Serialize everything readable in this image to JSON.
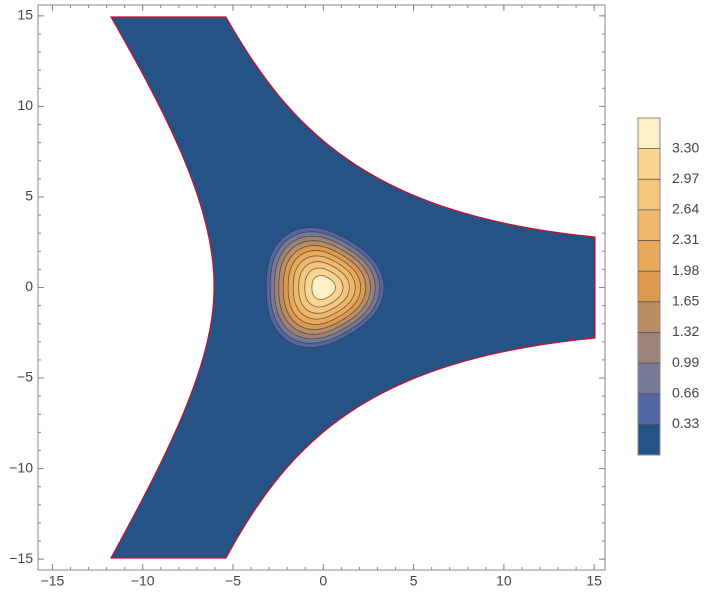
{
  "chart_data": {
    "type": "contour",
    "xlim": [
      -15.8,
      15.6
    ],
    "ylim": [
      -15.6,
      15.6
    ],
    "xticks": [
      {
        "value": -15,
        "label": "−15"
      },
      {
        "value": -10,
        "label": "−10"
      },
      {
        "value": -5,
        "label": "−5"
      },
      0,
      5,
      10,
      15
    ],
    "yticks": [
      {
        "value": -15,
        "label": "−15"
      },
      {
        "value": -10,
        "label": "−10"
      },
      {
        "value": -5,
        "label": "−5"
      },
      0,
      5,
      10,
      15
    ],
    "levels": [
      0.33,
      0.66,
      0.99,
      1.32,
      1.65,
      1.98,
      2.31,
      2.64,
      2.97,
      {
        "value": 3.3,
        "label": "3.30"
      }
    ],
    "colors": [
      "#265386",
      "#5365a3",
      "#767996",
      "#9b8378",
      "#bb8d62",
      "#dd9a4e",
      "#e9a95a",
      "#f0b86a",
      "#f5c67c",
      "#f9d58f",
      "#fdf0c6"
    ],
    "boundary_color": "#c8102e"
  }
}
